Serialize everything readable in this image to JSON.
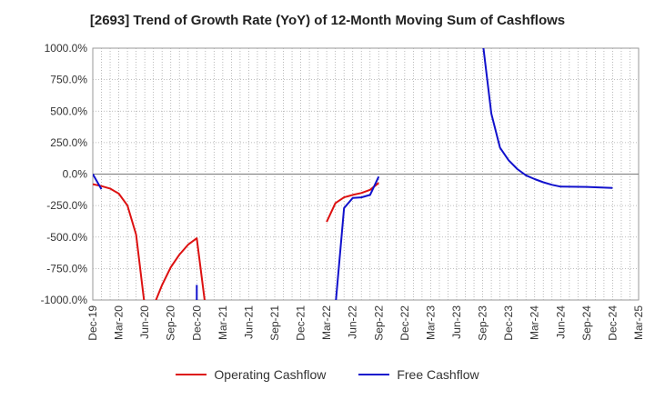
{
  "title": "[2693]  Trend of Growth Rate (YoY) of 12-Month Moving Sum of Cashflows",
  "chart_data": {
    "type": "line",
    "title": "[2693]  Trend of Growth Rate (YoY) of 12-Month Moving Sum of Cashflows",
    "xlabel": "",
    "ylabel": "",
    "ylim": [
      -1000,
      1000
    ],
    "xlim": [
      "2019-12",
      "2025-03"
    ],
    "grid": true,
    "legend_position": "bottom",
    "y_ticks": [
      "1000.0%",
      "750.0%",
      "500.0%",
      "250.0%",
      "0.0%",
      "-250.0%",
      "-500.0%",
      "-750.0%",
      "-1000.0%"
    ],
    "x_ticks": [
      "Dec-19",
      "Mar-20",
      "Jun-20",
      "Sep-20",
      "Dec-20",
      "Mar-21",
      "Jun-21",
      "Sep-21",
      "Dec-21",
      "Mar-22",
      "Jun-22",
      "Sep-22",
      "Dec-22",
      "Mar-23",
      "Jun-23",
      "Sep-23",
      "Dec-23",
      "Mar-24",
      "Jun-24",
      "Sep-24",
      "Dec-24",
      "Mar-25"
    ],
    "series": [
      {
        "name": "Operating Cashflow",
        "color": "#dd1111",
        "segments": [
          [
            [
              "2019-12",
              -80
            ],
            [
              "2020-01",
              -95
            ],
            [
              "2020-02",
              -115
            ],
            [
              "2020-03",
              -155
            ],
            [
              "2020-04",
              -250
            ],
            [
              "2020-05",
              -480
            ],
            [
              "2020-06",
              -1050
            ]
          ],
          [
            [
              "2020-07",
              -1050
            ],
            [
              "2020-08",
              -880
            ],
            [
              "2020-09",
              -740
            ],
            [
              "2020-10",
              -640
            ],
            [
              "2020-11",
              -560
            ],
            [
              "2020-12",
              -510
            ],
            [
              "2021-01",
              -1050
            ]
          ],
          [
            [
              "2022-03",
              -380
            ],
            [
              "2022-04",
              -230
            ],
            [
              "2022-05",
              -185
            ],
            [
              "2022-06",
              -165
            ],
            [
              "2022-07",
              -150
            ],
            [
              "2022-08",
              -125
            ],
            [
              "2022-09",
              -70
            ]
          ]
        ]
      },
      {
        "name": "Free Cashflow",
        "color": "#1111cc",
        "segments": [
          [
            [
              "2019-12",
              0
            ],
            [
              "2020-01",
              -120
            ]
          ],
          [
            [
              "2020-12",
              -880
            ],
            [
              "2020-12",
              -1050
            ]
          ],
          [
            [
              "2022-04",
              -1050
            ],
            [
              "2022-05",
              -270
            ],
            [
              "2022-06",
              -190
            ],
            [
              "2022-07",
              -185
            ],
            [
              "2022-08",
              -165
            ],
            [
              "2022-09",
              -20
            ]
          ],
          [
            [
              "2023-09",
              1050
            ],
            [
              "2023-10",
              480
            ],
            [
              "2023-11",
              210
            ],
            [
              "2023-12",
              110
            ],
            [
              "2024-01",
              40
            ],
            [
              "2024-02",
              -10
            ],
            [
              "2024-03",
              -40
            ],
            [
              "2024-04",
              -65
            ],
            [
              "2024-05",
              -85
            ],
            [
              "2024-06",
              -100
            ],
            [
              "2024-09",
              -102
            ],
            [
              "2024-12",
              -110
            ]
          ]
        ]
      }
    ]
  },
  "legend": {
    "operating_label": "Operating Cashflow",
    "free_label": "Free Cashflow"
  }
}
